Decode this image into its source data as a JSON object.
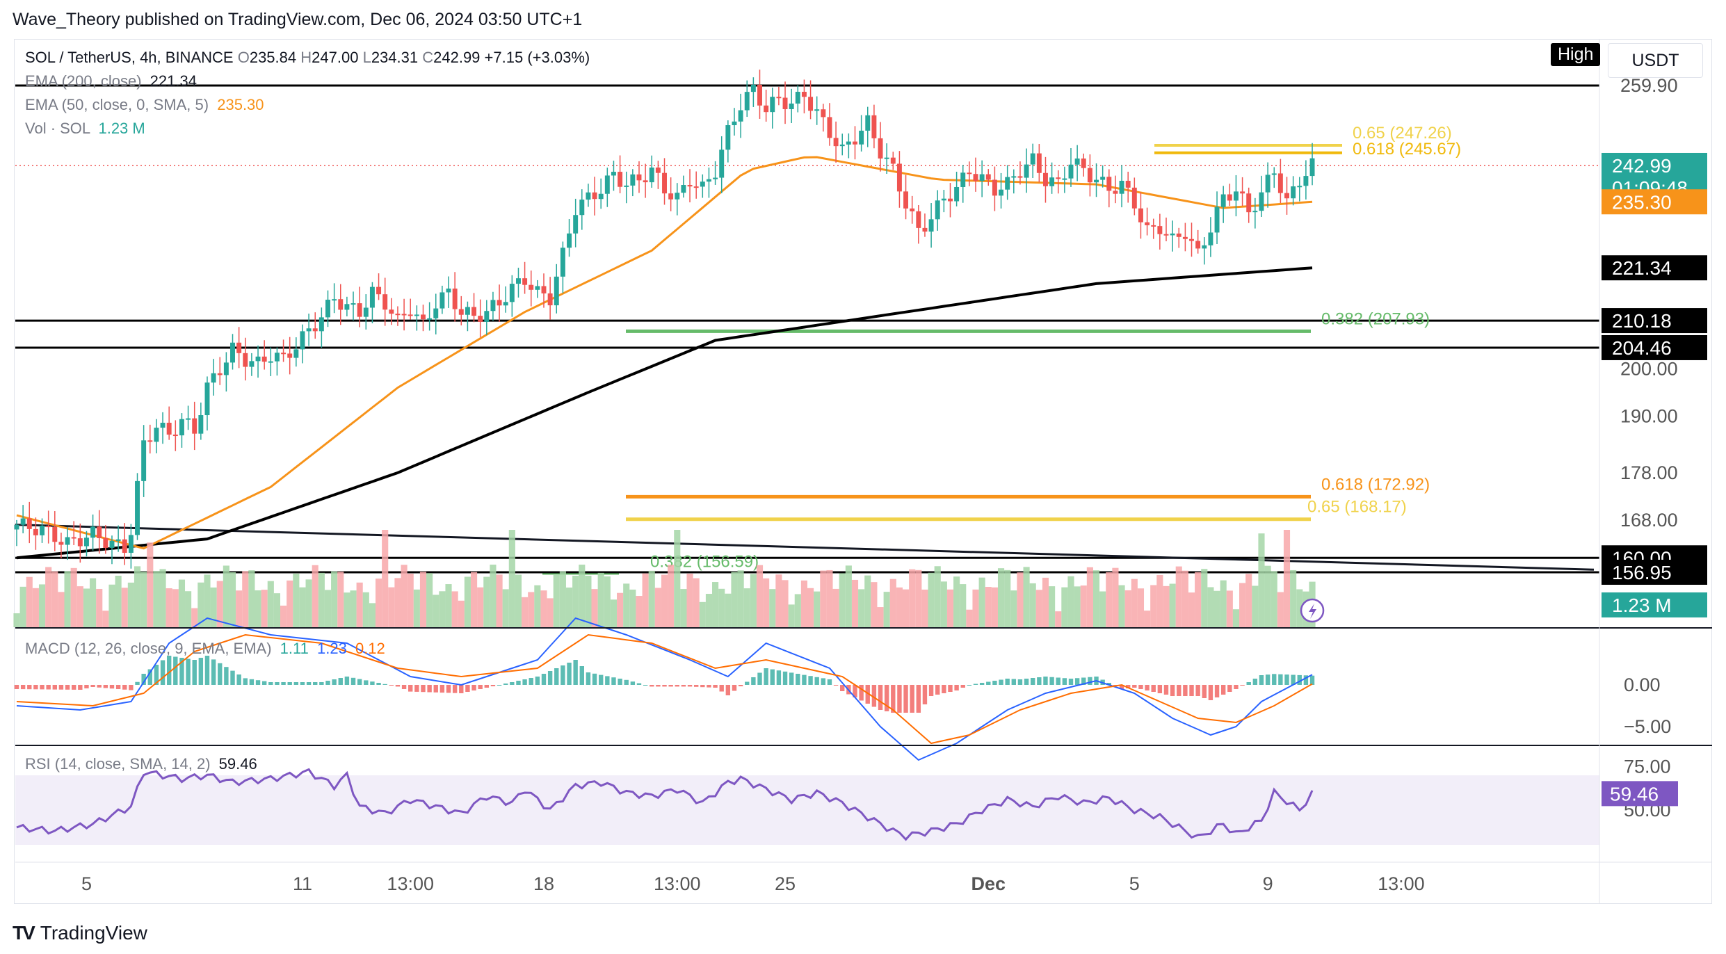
{
  "publisher": "Wave_Theory published on TradingView.com, Dec 06, 2024 03:50 UTC+1",
  "footer": {
    "brand": "TradingView",
    "logo": "TV"
  },
  "toolbar": {
    "high_button": "High",
    "currency": "USDT"
  },
  "colors": {
    "up": "#26a69a",
    "down": "#ef5350",
    "ema50": "#f7931a",
    "ema200": "#000000",
    "fib_gold": "#f0d24b",
    "fib_orange": "#f7931a",
    "fib_green": "#66bb6a",
    "macd_line": "#2962ff",
    "signal_line": "#ff6d00",
    "rsi_line": "#7e57c2"
  },
  "legend": {
    "symbol": "SOL / TetherUS, 4h, BINANCE",
    "o_label": "O",
    "o": "235.84",
    "h_label": "H",
    "h": "247.00",
    "l_label": "L",
    "l": "234.31",
    "c_label": "C",
    "c": "242.99",
    "change": "+7.15 (+3.03%)",
    "ema200_label": "EMA (200, close)",
    "ema200_value": "221.34",
    "ema50_label": "EMA (50, close, 0, SMA, 5)",
    "ema50_value": "235.30",
    "vol_label": "Vol · SOL",
    "vol_value": "1.23 M",
    "macd_label": "MACD (12, 26, close, 9, EMA, EMA)",
    "macd_hist": "1.11",
    "macd_line": "1.23",
    "macd_signal": "0.12",
    "rsi_label": "RSI (14, close, SMA, 14, 2)",
    "rsi_value": "59.46"
  },
  "price_axis": {
    "ticks": [
      "259.90",
      "200.00",
      "190.00",
      "178.00",
      "168.00"
    ]
  },
  "price_tags": [
    {
      "label": "242.99",
      "sub": "01:09:48",
      "price": 242.99,
      "color": "#26a69a",
      "text": "#ffffff"
    },
    {
      "label": "235.30",
      "price": 235.3,
      "color": "#f7931a",
      "text": "#ffffff"
    },
    {
      "label": "221.34",
      "price": 221.34,
      "color": "#000000",
      "text": "#ffffff"
    },
    {
      "label": "210.18",
      "price": 210.18,
      "color": "#000000",
      "text": "#ffffff"
    },
    {
      "label": "204.46",
      "price": 204.46,
      "color": "#000000",
      "text": "#ffffff"
    },
    {
      "label": "160.00",
      "price": 160.0,
      "color": "#000000",
      "text": "#ffffff"
    },
    {
      "label": "156.95",
      "price": 156.95,
      "color": "#000000",
      "text": "#ffffff"
    },
    {
      "label": "1.23 M",
      "color": "#26a69a",
      "text": "#ffffff"
    }
  ],
  "macd_axis": {
    "ticks": [
      "0.00",
      "−5.00"
    ]
  },
  "rsi_axis": {
    "ticks": [
      "75.00",
      "50.00"
    ]
  },
  "rsi_tag": "59.46",
  "time_axis": {
    "labels": [
      "5",
      "11",
      "13:00",
      "18",
      "13:00",
      "25",
      "Dec",
      "5",
      "9",
      "13:00"
    ]
  },
  "fib_labels": [
    {
      "text": "0.65 (247.26)",
      "price": 247.26,
      "color": "#f0d24b"
    },
    {
      "text": "0.618 (245.67)",
      "price": 245.67,
      "color": "#f0b90b"
    },
    {
      "text": "0.382 (207.93)",
      "price": 207.93,
      "color": "#66bb6a"
    },
    {
      "text": "0.618 (172.92)",
      "price": 172.92,
      "color": "#f7931a"
    },
    {
      "text": "0.65 (168.17)",
      "price": 168.17,
      "color": "#f0d24b"
    },
    {
      "text": "0.382 (156.59)",
      "price": 156.59,
      "color": "#66bb6a"
    }
  ],
  "chart_data": {
    "type": "candlestick",
    "symbol": "SOL / TetherUS",
    "timeframe": "4h",
    "exchange": "BINANCE",
    "x_labels": [
      "5",
      "11",
      "13:00",
      "18",
      "13:00",
      "25",
      "Dec",
      "5",
      "9",
      "13:00"
    ],
    "close_path": [
      [
        0,
        167
      ],
      [
        4,
        166
      ],
      [
        8,
        163
      ],
      [
        12,
        165
      ],
      [
        15,
        163
      ],
      [
        17,
        162
      ],
      [
        18,
        166
      ],
      [
        20,
        184
      ],
      [
        22,
        188
      ],
      [
        24,
        186
      ],
      [
        26,
        189
      ],
      [
        28,
        187
      ],
      [
        30,
        196
      ],
      [
        32,
        200
      ],
      [
        34,
        204
      ],
      [
        36,
        202
      ],
      [
        38,
        201
      ],
      [
        40,
        203
      ],
      [
        42,
        202
      ],
      [
        44,
        205
      ],
      [
        46,
        208
      ],
      [
        48,
        211
      ],
      [
        50,
        215
      ],
      [
        52,
        213
      ],
      [
        54,
        212
      ],
      [
        56,
        216
      ],
      [
        58,
        214
      ],
      [
        60,
        210
      ],
      [
        62,
        213
      ],
      [
        64,
        209
      ],
      [
        66,
        214
      ],
      [
        68,
        216
      ],
      [
        70,
        212
      ],
      [
        72,
        211
      ],
      [
        74,
        212
      ],
      [
        76,
        214
      ],
      [
        78,
        217
      ],
      [
        80,
        219
      ],
      [
        82,
        216
      ],
      [
        84,
        215
      ],
      [
        86,
        224
      ],
      [
        88,
        234
      ],
      [
        90,
        236
      ],
      [
        92,
        238
      ],
      [
        94,
        241
      ],
      [
        96,
        239
      ],
      [
        98,
        240
      ],
      [
        100,
        242
      ],
      [
        102,
        238
      ],
      [
        104,
        236
      ],
      [
        106,
        240
      ],
      [
        108,
        238
      ],
      [
        110,
        242
      ],
      [
        112,
        250
      ],
      [
        114,
        256
      ],
      [
        116,
        259
      ],
      [
        118,
        255
      ],
      [
        120,
        257
      ],
      [
        122,
        256
      ],
      [
        124,
        258
      ],
      [
        126,
        254
      ],
      [
        128,
        250
      ],
      [
        130,
        246
      ],
      [
        132,
        249
      ],
      [
        134,
        252
      ],
      [
        136,
        246
      ],
      [
        138,
        242
      ],
      [
        140,
        235
      ],
      [
        142,
        229
      ],
      [
        144,
        232
      ],
      [
        146,
        236
      ],
      [
        148,
        238
      ],
      [
        150,
        242
      ],
      [
        152,
        240
      ],
      [
        154,
        238
      ],
      [
        156,
        239
      ],
      [
        158,
        242
      ],
      [
        160,
        244
      ],
      [
        162,
        240
      ],
      [
        164,
        239
      ],
      [
        166,
        244
      ],
      [
        168,
        242
      ],
      [
        170,
        240
      ],
      [
        172,
        238
      ],
      [
        174,
        239
      ],
      [
        176,
        235
      ],
      [
        178,
        229
      ],
      [
        180,
        230
      ],
      [
        182,
        227
      ],
      [
        184,
        229
      ],
      [
        186,
        224
      ],
      [
        188,
        230
      ],
      [
        190,
        236
      ],
      [
        192,
        238
      ],
      [
        194,
        233
      ],
      [
        196,
        237
      ],
      [
        198,
        242
      ],
      [
        200,
        235
      ],
      [
        202,
        240
      ],
      [
        204,
        243
      ]
    ],
    "ema50_path": [
      [
        0,
        169
      ],
      [
        20,
        162
      ],
      [
        40,
        175
      ],
      [
        60,
        196
      ],
      [
        80,
        212
      ],
      [
        100,
        225
      ],
      [
        115,
        242
      ],
      [
        125,
        245
      ],
      [
        145,
        240
      ],
      [
        170,
        239
      ],
      [
        190,
        234
      ],
      [
        204,
        235.3
      ]
    ],
    "ema200_path": [
      [
        0,
        160
      ],
      [
        30,
        164
      ],
      [
        60,
        178
      ],
      [
        90,
        195
      ],
      [
        110,
        206
      ],
      [
        140,
        212
      ],
      [
        170,
        218
      ],
      [
        204,
        221.34
      ]
    ],
    "horizontal_levels": [
      259.9,
      210.18,
      204.46,
      160.0,
      156.95
    ],
    "fib_levels": [
      {
        "ratio": 0.65,
        "price": 247.26,
        "color": "#f0d24b"
      },
      {
        "ratio": 0.618,
        "price": 245.67,
        "color": "#f0b90b"
      },
      {
        "ratio": 0.382,
        "price": 207.93,
        "color": "#66bb6a"
      },
      {
        "ratio": 0.618,
        "price": 172.92,
        "color": "#f7931a"
      },
      {
        "ratio": 0.65,
        "price": 168.17,
        "color": "#f0d24b"
      },
      {
        "ratio": 0.382,
        "price": 156.59,
        "color": "#66bb6a"
      }
    ],
    "trendline": {
      "from": [
        0,
        167
      ],
      "to": [
        249,
        163
      ]
    },
    "last": {
      "open": 235.84,
      "high": 247.0,
      "low": 234.31,
      "close": 242.99,
      "change": 7.15,
      "change_pct": 3.03
    },
    "ema200": 221.34,
    "ema50": 235.3,
    "volume_last": "1.23M",
    "macd": {
      "histogram": 1.11,
      "macd": 1.23,
      "signal": 0.12,
      "axis_ticks": [
        0.0,
        -5.0
      ]
    },
    "macd_path": [
      [
        0,
        -2.5
      ],
      [
        10,
        -3
      ],
      [
        18,
        -2
      ],
      [
        24,
        5
      ],
      [
        30,
        8
      ],
      [
        40,
        6
      ],
      [
        52,
        5
      ],
      [
        62,
        1
      ],
      [
        70,
        0
      ],
      [
        82,
        3
      ],
      [
        88,
        8
      ],
      [
        96,
        6
      ],
      [
        106,
        3
      ],
      [
        112,
        1
      ],
      [
        118,
        5
      ],
      [
        128,
        2
      ],
      [
        136,
        -5
      ],
      [
        142,
        -9
      ],
      [
        148,
        -7
      ],
      [
        156,
        -3
      ],
      [
        162,
        -1
      ],
      [
        170,
        0.5
      ],
      [
        176,
        -1
      ],
      [
        182,
        -4
      ],
      [
        188,
        -6
      ],
      [
        192,
        -5
      ],
      [
        196,
        -2
      ],
      [
        204,
        1.23
      ]
    ],
    "signal_path": [
      [
        0,
        -2
      ],
      [
        12,
        -2.5
      ],
      [
        20,
        -1
      ],
      [
        28,
        4
      ],
      [
        36,
        6
      ],
      [
        48,
        5
      ],
      [
        60,
        2
      ],
      [
        70,
        1
      ],
      [
        82,
        2
      ],
      [
        90,
        6
      ],
      [
        100,
        5
      ],
      [
        110,
        2
      ],
      [
        118,
        3
      ],
      [
        130,
        1
      ],
      [
        138,
        -3
      ],
      [
        144,
        -7
      ],
      [
        150,
        -6
      ],
      [
        158,
        -3
      ],
      [
        166,
        -1
      ],
      [
        174,
        0
      ],
      [
        180,
        -2
      ],
      [
        186,
        -4
      ],
      [
        192,
        -4.5
      ],
      [
        198,
        -2.5
      ],
      [
        204,
        0.12
      ]
    ],
    "rsi": {
      "value": 59.46,
      "band": [
        30,
        70
      ],
      "axis_ticks": [
        75,
        50
      ]
    },
    "rsi_path": [
      [
        0,
        40
      ],
      [
        6,
        38
      ],
      [
        12,
        42
      ],
      [
        18,
        52
      ],
      [
        20,
        72
      ],
      [
        26,
        68
      ],
      [
        30,
        70
      ],
      [
        34,
        66
      ],
      [
        40,
        68
      ],
      [
        46,
        72
      ],
      [
        50,
        64
      ],
      [
        52,
        70
      ],
      [
        54,
        52
      ],
      [
        58,
        48
      ],
      [
        62,
        56
      ],
      [
        66,
        52
      ],
      [
        70,
        48
      ],
      [
        74,
        58
      ],
      [
        78,
        54
      ],
      [
        80,
        62
      ],
      [
        84,
        50
      ],
      [
        88,
        64
      ],
      [
        92,
        66
      ],
      [
        96,
        60
      ],
      [
        100,
        58
      ],
      [
        104,
        62
      ],
      [
        108,
        54
      ],
      [
        112,
        66
      ],
      [
        114,
        68
      ],
      [
        118,
        62
      ],
      [
        122,
        56
      ],
      [
        126,
        60
      ],
      [
        130,
        54
      ],
      [
        134,
        46
      ],
      [
        138,
        38
      ],
      [
        140,
        35
      ],
      [
        144,
        38
      ],
      [
        148,
        42
      ],
      [
        152,
        50
      ],
      [
        156,
        56
      ],
      [
        160,
        52
      ],
      [
        164,
        58
      ],
      [
        168,
        54
      ],
      [
        172,
        57
      ],
      [
        176,
        50
      ],
      [
        180,
        46
      ],
      [
        184,
        38
      ],
      [
        186,
        34
      ],
      [
        190,
        42
      ],
      [
        192,
        36
      ],
      [
        196,
        44
      ],
      [
        198,
        60
      ],
      [
        202,
        50
      ],
      [
        204,
        59.46
      ]
    ]
  }
}
